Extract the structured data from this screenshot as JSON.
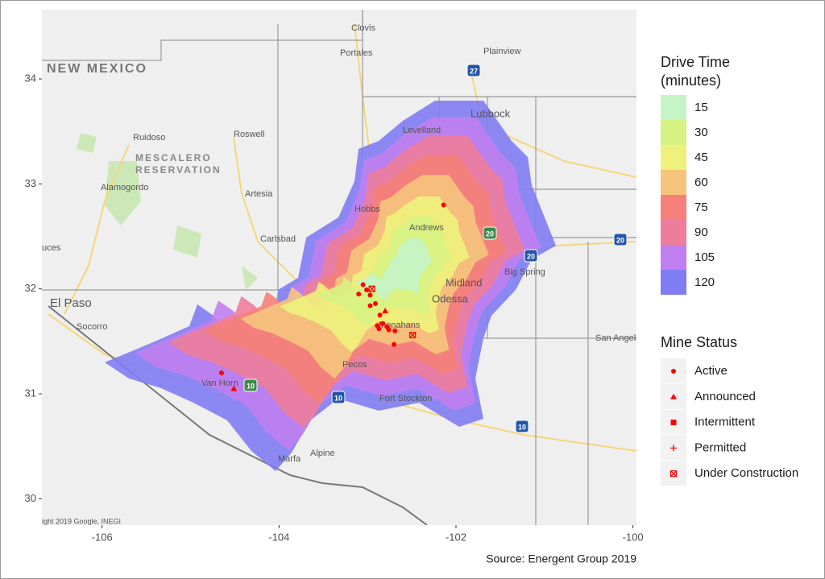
{
  "chart_data": {
    "type": "scatter",
    "caption": "Source: Energent Group 2019",
    "xlim": [
      -106.68,
      -99.96
    ],
    "ylim": [
      29.75,
      34.66
    ],
    "xticks": [
      -106,
      -104,
      -102,
      -100
    ],
    "yticks": [
      30,
      31,
      32,
      33,
      34
    ],
    "map_labels": [
      "NEW MEXICO",
      "Clovis",
      "Portales",
      "Plainview",
      "Lubbock",
      "Levelland",
      "Roswell",
      "Ruidoso",
      "MESCALERO",
      "RESERVATION",
      "Alamogordo",
      "Artesia",
      "Hobbs",
      "Carlsbad",
      "Andrews",
      "Midland",
      "Odessa",
      "Big Spring",
      "El Paso",
      "Socorro",
      "uces",
      "Pecos",
      "Monahans",
      "Van Horn",
      "Fort Stockton",
      "San Angelo",
      "Alpine",
      "Marfa",
      "ight 2019 Google, INEGI"
    ],
    "shields": [
      "27",
      "20",
      "20",
      "20",
      "10",
      "10",
      "10"
    ],
    "fill_scale": {
      "title": [
        "Drive Time",
        "(minutes)"
      ],
      "levels": [
        15,
        30,
        45,
        60,
        75,
        90,
        105,
        120
      ],
      "colors": [
        "#c4f4c8",
        "#d6f283",
        "#eef27c",
        "#f6c47c",
        "#f5817a",
        "#ee7d9c",
        "#c07ff0",
        "#7f7cf4"
      ]
    },
    "legend_title": "Mine Status",
    "series": [
      {
        "name": "Active",
        "color": "#ff0000",
        "marker": "circle",
        "x": [
          -102.14,
          -104.65,
          -103.05,
          -103.1,
          -103.01,
          -102.97,
          -102.91,
          -102.97,
          -102.86,
          -102.89,
          -102.83,
          -102.78,
          -102.76,
          -102.69,
          -102.7,
          -102.87
        ],
        "values": [
          32.8,
          31.2,
          32.04,
          31.95,
          31.99,
          31.94,
          31.86,
          31.84,
          31.75,
          31.65,
          31.67,
          31.64,
          31.61,
          31.6,
          31.47,
          31.62
        ]
      },
      {
        "name": "Announced",
        "color": "#ff0000",
        "marker": "triangle",
        "x": [
          -102.8,
          -104.51
        ],
        "values": [
          31.79,
          31.05
        ]
      },
      {
        "name": "Intermittent",
        "color": "#ff0000",
        "marker": "square",
        "x": [],
        "values": []
      },
      {
        "name": "Permitted",
        "color": "#ff0000",
        "marker": "plus",
        "x": [],
        "values": []
      },
      {
        "name": "Under Construction",
        "color": "#ff0000",
        "marker": "boxx",
        "x": [
          -102.95,
          -102.49
        ],
        "values": [
          32.0,
          31.56
        ]
      }
    ]
  }
}
